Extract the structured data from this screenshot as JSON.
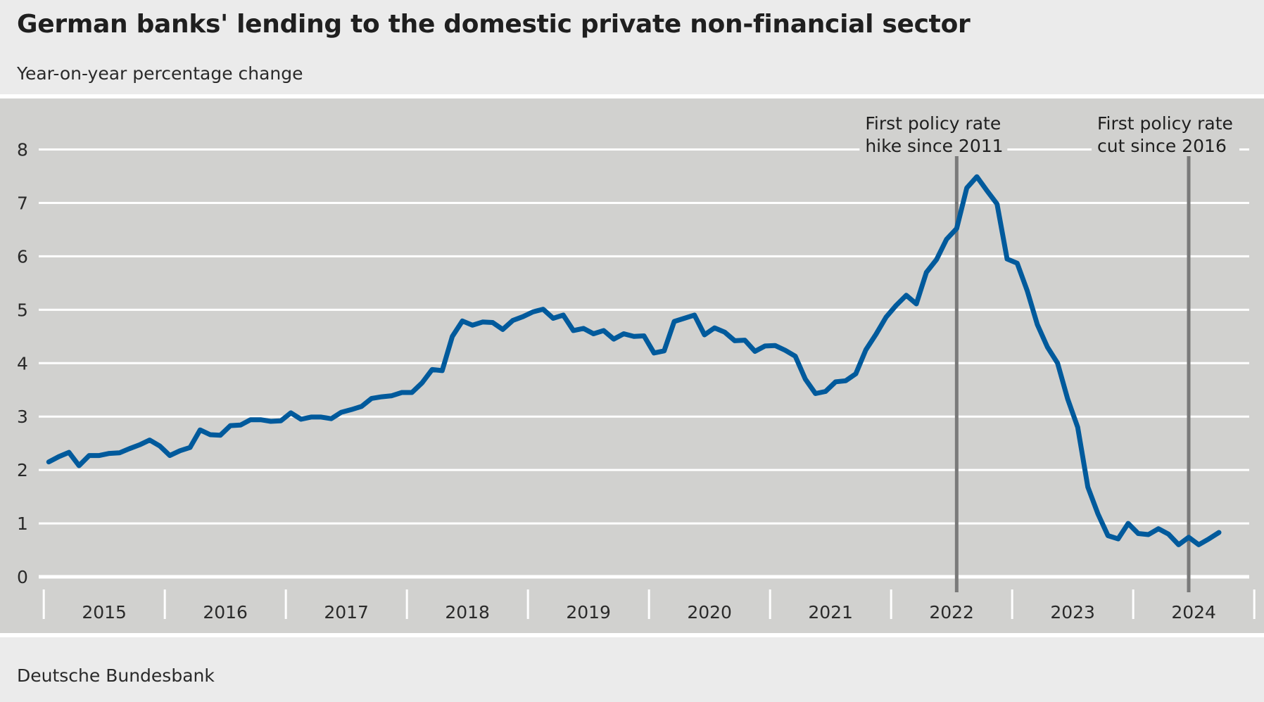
{
  "title": "German banks' lending to the domestic private non-financial sector",
  "subtitle": "Year-on-year percentage change",
  "source": "Deutsche Bundesbank",
  "colors": {
    "background": "#ebebeb",
    "plot_area": "#d1d1cf",
    "gridline": "#ffffff",
    "series": "#005a9c",
    "event_line": "#7a7a7a"
  },
  "chart_data": {
    "type": "line",
    "title": "German banks' lending to the domestic private non-financial sector",
    "subtitle": "Year-on-year percentage change",
    "xlabel": "",
    "ylabel": "",
    "ylim": [
      0,
      8
    ],
    "yticks": [
      0,
      1,
      2,
      3,
      4,
      5,
      6,
      7,
      8
    ],
    "ytick_labels": [
      "0",
      "1",
      "2",
      "3",
      "4",
      "5",
      "6",
      "7",
      "8"
    ],
    "xlim": [
      "2014-12",
      "2024-12"
    ],
    "x_tick_labels": [
      "2015",
      "2016",
      "2017",
      "2018",
      "2019",
      "2020",
      "2021",
      "2022",
      "2023",
      "2024"
    ],
    "grid": "horizontal",
    "legend": "none",
    "series": [
      {
        "x_start": "2015-01",
        "frequency": "monthly",
        "values": [
          2.15,
          2.25,
          2.33,
          2.08,
          2.27,
          2.27,
          2.31,
          2.32,
          2.4,
          2.47,
          2.56,
          2.45,
          2.27,
          2.36,
          2.42,
          2.75,
          2.66,
          2.65,
          2.83,
          2.84,
          2.94,
          2.94,
          2.91,
          2.92,
          3.07,
          2.95,
          2.99,
          2.99,
          2.96,
          3.08,
          3.13,
          3.19,
          3.34,
          3.37,
          3.39,
          3.45,
          3.45,
          3.63,
          3.88,
          3.86,
          4.5,
          4.79,
          4.71,
          4.77,
          4.76,
          4.63,
          4.8,
          4.87,
          4.96,
          5.01,
          4.84,
          4.9,
          4.61,
          4.65,
          4.55,
          4.61,
          4.45,
          4.55,
          4.5,
          4.51,
          4.19,
          4.23,
          4.78,
          4.84,
          4.9,
          4.53,
          4.66,
          4.58,
          4.42,
          4.43,
          4.22,
          4.32,
          4.33,
          4.24,
          4.13,
          3.7,
          3.43,
          3.47,
          3.65,
          3.67,
          3.8,
          4.25,
          4.54,
          4.86,
          5.08,
          5.27,
          5.11,
          5.7,
          5.94,
          6.32,
          6.52,
          7.28,
          7.49,
          7.23,
          6.98,
          5.95,
          5.87,
          5.35,
          4.72,
          4.3,
          4.0,
          3.33,
          2.8,
          1.68,
          1.18,
          0.77,
          0.71,
          1.0,
          0.81,
          0.79,
          0.9,
          0.8,
          0.6,
          0.74,
          0.6,
          0.71,
          0.83
        ]
      }
    ],
    "annotations": [
      {
        "date": "2022-07",
        "lines": [
          "First policy rate",
          "hike since 2011"
        ]
      },
      {
        "date": "2024-06",
        "lines": [
          "First policy rate",
          "cut since 2016"
        ]
      }
    ]
  }
}
